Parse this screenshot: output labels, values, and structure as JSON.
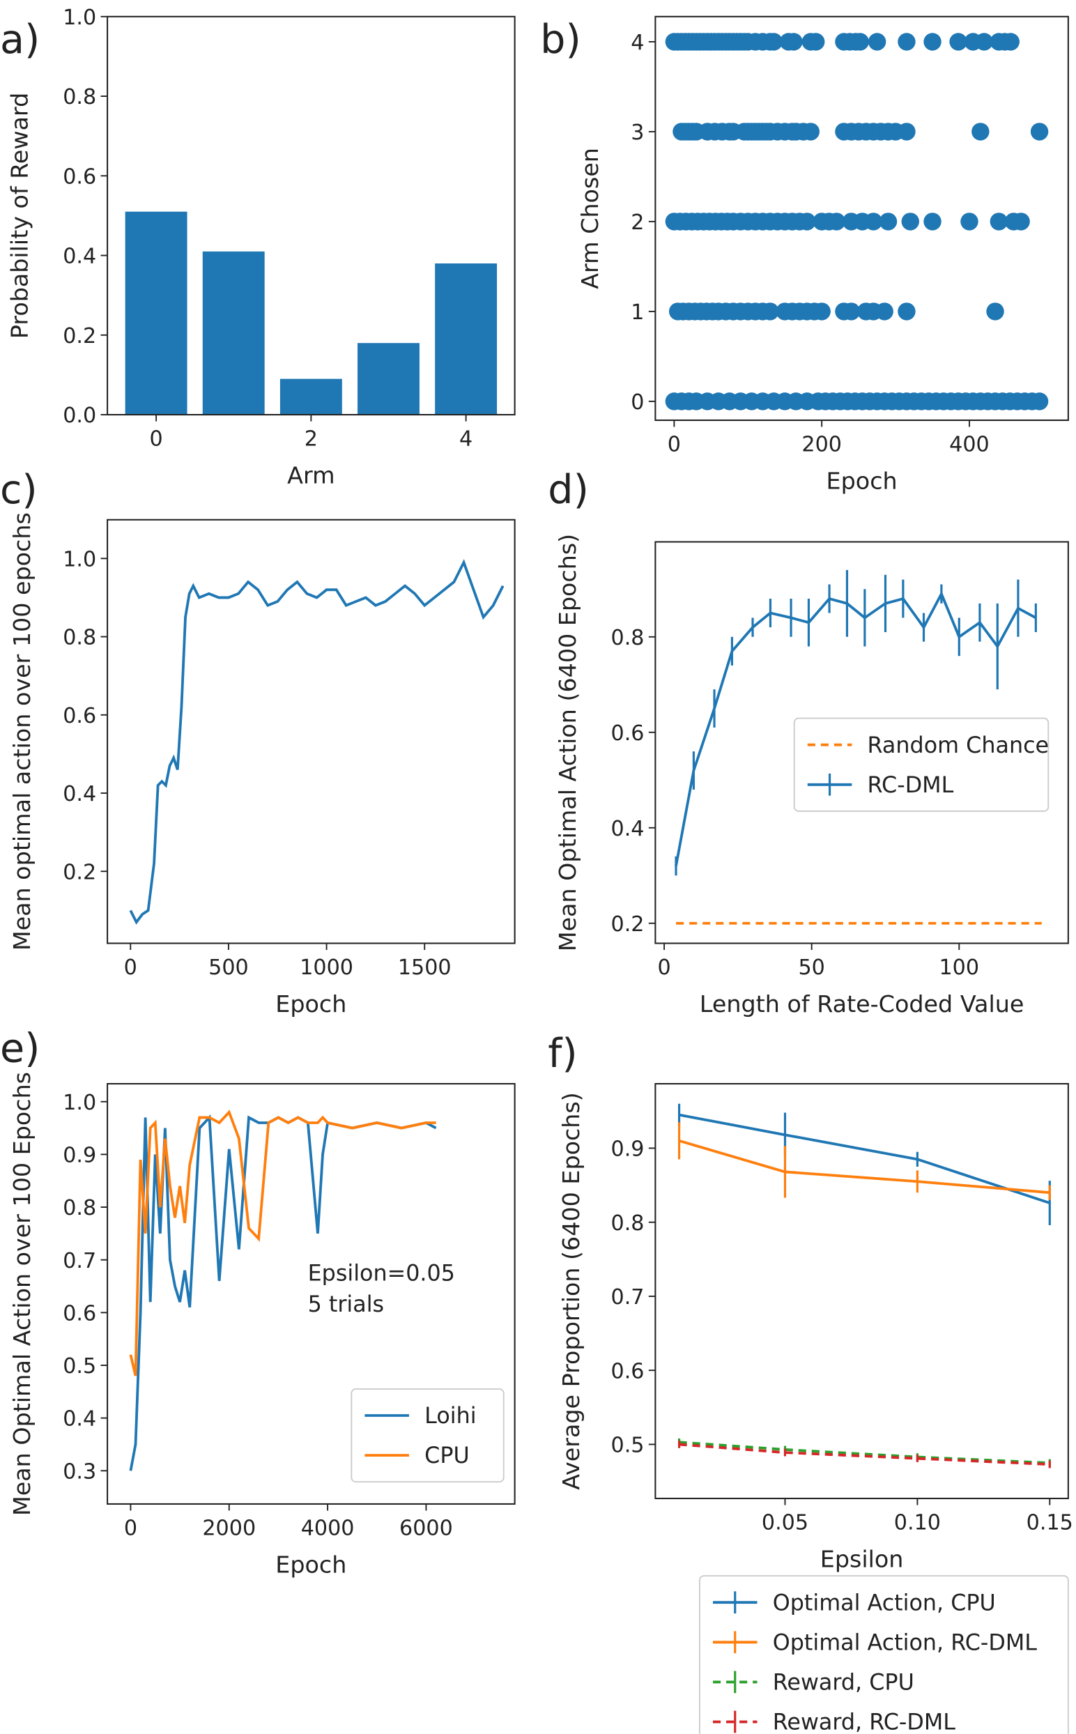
{
  "chart_data": [
    {
      "type": "bar",
      "label": "a)",
      "ylabel": "Probability of Reward",
      "xlabel": "Arm",
      "x": [
        0,
        1,
        2,
        3,
        4
      ],
      "values": [
        0.51,
        0.41,
        0.09,
        0.18,
        0.38
      ],
      "color": "#1f77b4",
      "xlim": [
        -0.63,
        4.63
      ],
      "xticks": [
        0,
        2,
        4
      ],
      "ylim": [
        0,
        1.0
      ],
      "yticks": [
        {
          "value": 0,
          "label": "0.0"
        },
        0.2,
        0.4,
        0.6,
        0.8,
        {
          "value": 1,
          "label": "1.0"
        }
      ]
    },
    {
      "type": "scatter",
      "label": "b)",
      "ylabel": "Arm Chosen",
      "xlabel": "Epoch",
      "color": "#1f77b4",
      "xlim": [
        -25.5,
        534
      ],
      "xticks": [
        0,
        200,
        400
      ],
      "ylim": [
        -0.21,
        4.28
      ],
      "yticks": [
        0,
        1,
        2,
        3,
        4
      ],
      "series": [
        {
          "x": [
            0,
            5,
            10,
            15,
            20,
            25,
            30,
            35,
            40,
            45,
            50,
            55,
            60,
            65,
            70,
            75,
            80,
            85,
            90,
            95,
            100,
            110,
            120,
            130,
            135,
            155,
            162,
            185,
            192,
            230,
            238,
            246,
            252,
            275,
            315,
            350,
            385,
            405,
            420,
            440,
            448,
            456
          ],
          "values": [
            4,
            4,
            4,
            4,
            4,
            4,
            4,
            4,
            4,
            4,
            4,
            4,
            4,
            4,
            4,
            4,
            4,
            4,
            4,
            4,
            4,
            4,
            4,
            4,
            4,
            4,
            4,
            4,
            4,
            4,
            4,
            4,
            4,
            4,
            4,
            4,
            4,
            4,
            4,
            4,
            4,
            4
          ]
        },
        {
          "x": [
            10,
            15,
            20,
            25,
            30,
            45,
            55,
            65,
            75,
            80,
            95,
            100,
            105,
            110,
            115,
            120,
            125,
            130,
            140,
            150,
            160,
            165,
            175,
            185,
            230,
            240,
            250,
            260,
            270,
            280,
            290,
            300,
            315,
            415,
            495
          ],
          "values": [
            3,
            3,
            3,
            3,
            3,
            3,
            3,
            3,
            3,
            3,
            3,
            3,
            3,
            3,
            3,
            3,
            3,
            3,
            3,
            3,
            3,
            3,
            3,
            3,
            3,
            3,
            3,
            3,
            3,
            3,
            3,
            3,
            3,
            3,
            3
          ]
        },
        {
          "x": [
            0,
            8,
            16,
            24,
            32,
            40,
            48,
            56,
            64,
            72,
            80,
            90,
            100,
            110,
            120,
            130,
            140,
            150,
            160,
            170,
            180,
            200,
            210,
            220,
            240,
            255,
            270,
            290,
            320,
            350,
            400,
            440,
            460,
            470
          ],
          "values": [
            2,
            2,
            2,
            2,
            2,
            2,
            2,
            2,
            2,
            2,
            2,
            2,
            2,
            2,
            2,
            2,
            2,
            2,
            2,
            2,
            2,
            2,
            2,
            2,
            2,
            2,
            2,
            2,
            2,
            2,
            2,
            2,
            2,
            2
          ]
        },
        {
          "x": [
            5,
            12,
            20,
            28,
            36,
            44,
            52,
            60,
            70,
            80,
            90,
            100,
            110,
            120,
            130,
            150,
            160,
            170,
            180,
            190,
            200,
            230,
            240,
            260,
            270,
            285,
            315,
            435
          ],
          "values": [
            1,
            1,
            1,
            1,
            1,
            1,
            1,
            1,
            1,
            1,
            1,
            1,
            1,
            1,
            1,
            1,
            1,
            1,
            1,
            1,
            1,
            1,
            1,
            1,
            1,
            1,
            1,
            1
          ]
        },
        {
          "x": [
            0,
            10,
            20,
            30,
            45,
            60,
            75,
            90,
            105,
            120,
            135,
            150,
            165,
            180,
            195,
            205,
            215,
            225,
            235,
            245,
            255,
            265,
            275,
            285,
            295,
            305,
            315,
            325,
            335,
            345,
            355,
            365,
            375,
            385,
            395,
            405,
            415,
            425,
            435,
            445,
            455,
            465,
            475,
            485,
            495
          ],
          "values": [
            0,
            0,
            0,
            0,
            0,
            0,
            0,
            0,
            0,
            0,
            0,
            0,
            0,
            0,
            0,
            0,
            0,
            0,
            0,
            0,
            0,
            0,
            0,
            0,
            0,
            0,
            0,
            0,
            0,
            0,
            0,
            0,
            0,
            0,
            0,
            0,
            0,
            0,
            0,
            0,
            0,
            0,
            0,
            0,
            0
          ]
        }
      ]
    },
    {
      "type": "line",
      "label": "c)",
      "ylabel": "Mean optimal action over 100 epochs",
      "xlabel": "Epoch",
      "color": "#1f77b4",
      "xlim": [
        -118,
        1960
      ],
      "xticks": [
        0,
        500,
        1000,
        1500
      ],
      "ylim": [
        0.016,
        1.099
      ],
      "yticks": [
        0.2,
        0.4,
        0.6,
        0.8,
        {
          "value": 1,
          "label": "1.0"
        }
      ],
      "x": [
        0,
        30,
        60,
        90,
        120,
        140,
        160,
        180,
        200,
        220,
        240,
        260,
        280,
        300,
        320,
        350,
        400,
        450,
        500,
        550,
        600,
        650,
        700,
        750,
        800,
        850,
        900,
        950,
        1000,
        1050,
        1100,
        1150,
        1200,
        1250,
        1300,
        1350,
        1400,
        1450,
        1500,
        1550,
        1600,
        1650,
        1700,
        1750,
        1800,
        1850,
        1900
      ],
      "values": [
        0.1,
        0.07,
        0.09,
        0.1,
        0.22,
        0.42,
        0.43,
        0.42,
        0.47,
        0.49,
        0.46,
        0.62,
        0.85,
        0.91,
        0.93,
        0.9,
        0.91,
        0.9,
        0.9,
        0.91,
        0.94,
        0.92,
        0.88,
        0.89,
        0.92,
        0.94,
        0.91,
        0.9,
        0.92,
        0.92,
        0.88,
        0.89,
        0.9,
        0.88,
        0.89,
        0.91,
        0.93,
        0.91,
        0.88,
        0.9,
        0.92,
        0.94,
        0.99,
        0.92,
        0.85,
        0.88,
        0.93
      ]
    },
    {
      "type": "line",
      "label": "d)",
      "ylabel": "Mean Optimal Action (6400 Epochs)",
      "xlabel": "Length of Rate-Coded Value",
      "xlim": [
        -3,
        137
      ],
      "xticks": [
        0,
        50,
        100
      ],
      "ylim": [
        0.158,
        0.999
      ],
      "yticks": [
        0.2,
        0.4,
        0.6,
        0.8
      ],
      "legend": "center right",
      "series": [
        {
          "name": "Random Chance",
          "color": "#ff7f0e",
          "linestyle": "dashed",
          "x": [
            4,
            128
          ],
          "values": [
            0.2,
            0.2
          ]
        },
        {
          "name": "RC-DML",
          "color": "#1f77b4",
          "x": [
            4,
            10,
            17,
            23,
            30,
            36,
            43,
            49,
            56,
            62,
            68,
            75,
            81,
            88,
            94,
            100,
            107,
            113,
            120,
            126
          ],
          "values": [
            0.32,
            0.52,
            0.65,
            0.77,
            0.82,
            0.85,
            0.84,
            0.83,
            0.88,
            0.87,
            0.84,
            0.87,
            0.88,
            0.82,
            0.89,
            0.8,
            0.83,
            0.78,
            0.86,
            0.84
          ],
          "errors": [
            0.02,
            0.04,
            0.04,
            0.03,
            0.02,
            0.03,
            0.04,
            0.05,
            0.03,
            0.07,
            0.06,
            0.06,
            0.04,
            0.03,
            0.02,
            0.04,
            0.04,
            0.09,
            0.06,
            0.03
          ]
        }
      ]
    },
    {
      "type": "line",
      "label": "e)",
      "ylabel": "Mean Optimal Action over 100 Epochs",
      "xlabel": "Epoch",
      "xlim": [
        -472,
        7800
      ],
      "xticks": [
        0,
        2000,
        4000,
        6000
      ],
      "ylim": [
        0.237,
        1.034
      ],
      "yticks": [
        0.3,
        0.4,
        0.5,
        0.6,
        0.7,
        0.8,
        0.9,
        {
          "value": 1,
          "label": "1.0"
        }
      ],
      "legend": "lower right",
      "annotations": [
        "Epsilon=0.05",
        "5 trials"
      ],
      "x": [
        0,
        100,
        200,
        300,
        400,
        500,
        600,
        700,
        800,
        900,
        1000,
        1100,
        1200,
        1400,
        1600,
        1800,
        2000,
        2200,
        2400,
        2600,
        2800,
        3000,
        3200,
        3400,
        3600,
        3800,
        3900,
        4000,
        4500,
        5000,
        5500,
        6000,
        6200
      ],
      "series": [
        {
          "name": "Loihi",
          "color": "#1f77b4",
          "values": [
            0.3,
            0.35,
            0.6,
            0.97,
            0.62,
            0.9,
            0.75,
            0.95,
            0.7,
            0.65,
            0.62,
            0.68,
            0.61,
            0.95,
            0.97,
            0.66,
            0.91,
            0.72,
            0.97,
            0.96,
            0.96,
            0.97,
            0.96,
            0.97,
            0.96,
            0.75,
            0.9,
            0.96,
            0.95,
            0.96,
            0.95,
            0.96,
            0.95
          ]
        },
        {
          "name": "CPU",
          "color": "#ff7f0e",
          "values": [
            0.52,
            0.48,
            0.89,
            0.75,
            0.95,
            0.96,
            0.8,
            0.93,
            0.84,
            0.78,
            0.84,
            0.77,
            0.88,
            0.97,
            0.97,
            0.96,
            0.98,
            0.93,
            0.76,
            0.74,
            0.96,
            0.97,
            0.96,
            0.97,
            0.96,
            0.96,
            0.97,
            0.96,
            0.95,
            0.96,
            0.95,
            0.96,
            0.96
          ]
        }
      ]
    },
    {
      "type": "line",
      "label": "f)",
      "ylabel": "Average Proportion (6400 Epochs)",
      "xlabel": "Epsilon",
      "xlim": [
        0.001,
        0.157
      ],
      "xticks": [
        0.05,
        {
          "value": 0.1,
          "label": "0.10"
        },
        0.15
      ],
      "ylim": [
        0.427,
        0.987
      ],
      "yticks": [
        0.5,
        0.6,
        0.7,
        0.8,
        0.9
      ],
      "legend": "below",
      "x": [
        0.01,
        0.05,
        0.1,
        0.15
      ],
      "series": [
        {
          "name": "Optimal Action, CPU",
          "color": "#1f77b4",
          "values": [
            0.945,
            0.918,
            0.885,
            0.826
          ],
          "errors": [
            0.015,
            0.03,
            0.01,
            0.03
          ]
        },
        {
          "name": "Optimal Action, RC-DML",
          "color": "#ff7f0e",
          "values": [
            0.91,
            0.868,
            0.855,
            0.84
          ],
          "errors": [
            0.025,
            0.035,
            0.015,
            0.01
          ]
        },
        {
          "name": "Reward, CPU",
          "color": "#2ca02c",
          "linestyle": "dashed",
          "values": [
            0.503,
            0.493,
            0.483,
            0.475
          ],
          "errors": [
            0.005,
            0.005,
            0.005,
            0.005
          ]
        },
        {
          "name": "Reward, RC-DML",
          "color": "#d62728",
          "linestyle": "dashed",
          "values": [
            0.5,
            0.489,
            0.481,
            0.473
          ],
          "errors": [
            0.005,
            0.005,
            0.005,
            0.005
          ]
        }
      ]
    }
  ]
}
